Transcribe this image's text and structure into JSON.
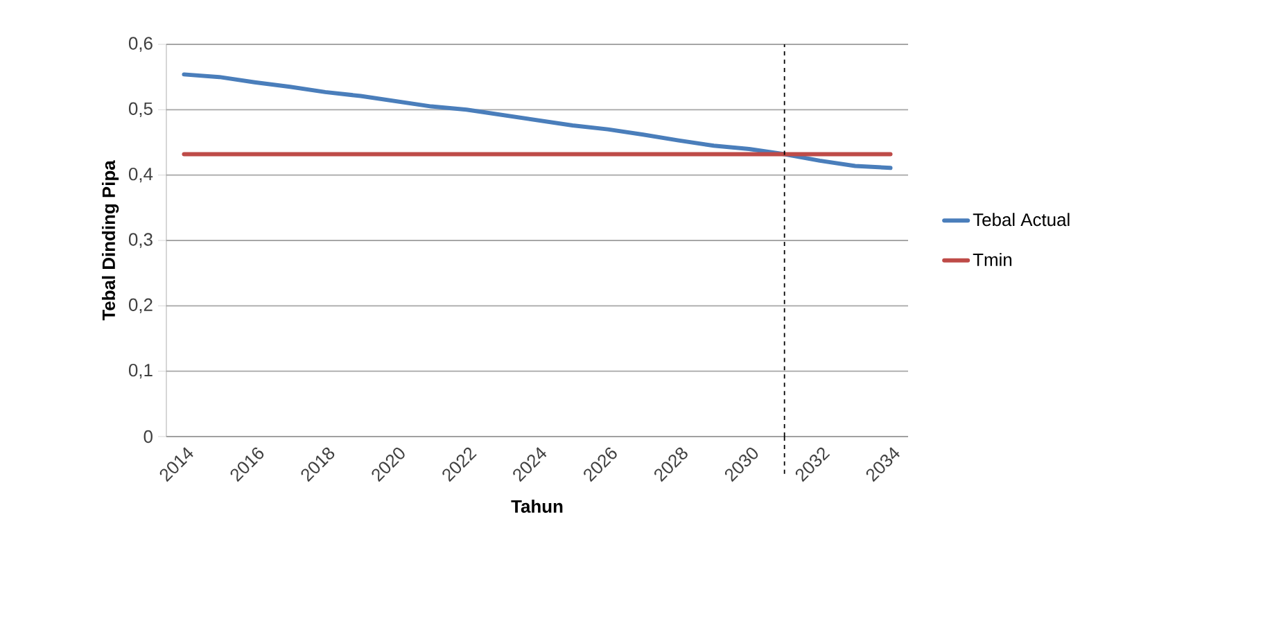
{
  "chart_data": {
    "type": "line",
    "xlabel": "Tahun",
    "ylabel": "Tebal Dinding Pipa",
    "x": [
      2014,
      2015,
      2016,
      2017,
      2018,
      2019,
      2020,
      2021,
      2022,
      2023,
      2024,
      2025,
      2026,
      2027,
      2028,
      2029,
      2030,
      2031,
      2032,
      2033,
      2034
    ],
    "series": [
      {
        "name": "Tebal Actual",
        "color": "#4a7ebb",
        "values": [
          0.554,
          0.55,
          0.542,
          0.535,
          0.527,
          0.521,
          0.513,
          0.505,
          0.5,
          0.492,
          0.484,
          0.476,
          0.47,
          0.462,
          0.453,
          0.445,
          0.44,
          0.432,
          0.422,
          0.414,
          0.411
        ]
      },
      {
        "name": "Tmin",
        "color": "#be4b48",
        "values": [
          0.432,
          0.432,
          0.432,
          0.432,
          0.432,
          0.432,
          0.432,
          0.432,
          0.432,
          0.432,
          0.432,
          0.432,
          0.432,
          0.432,
          0.432,
          0.432,
          0.432,
          0.432,
          0.432,
          0.432,
          0.432
        ]
      }
    ],
    "xlim": [
      2013.5,
      2034.5
    ],
    "xticks": [
      2014,
      2016,
      2018,
      2020,
      2022,
      2024,
      2026,
      2028,
      2030,
      2032,
      2034
    ],
    "ylim": [
      0,
      0.6
    ],
    "yticks": [
      0,
      {
        "value": 0.1,
        "label": "0,1"
      },
      {
        "value": 0.2,
        "label": "0,2"
      },
      {
        "value": 0.3,
        "label": "0,3"
      },
      {
        "value": 0.4,
        "label": "0,4"
      },
      {
        "value": 0.5,
        "label": "0,5"
      },
      {
        "value": 0.6,
        "label": "0,6"
      }
    ],
    "ref_lines": [
      {
        "axis": "x",
        "value": 2031,
        "color": "#000000",
        "line_style": "dashed"
      }
    ],
    "grid": "y",
    "legend": "right",
    "marker": "none",
    "line_style": "solid"
  }
}
